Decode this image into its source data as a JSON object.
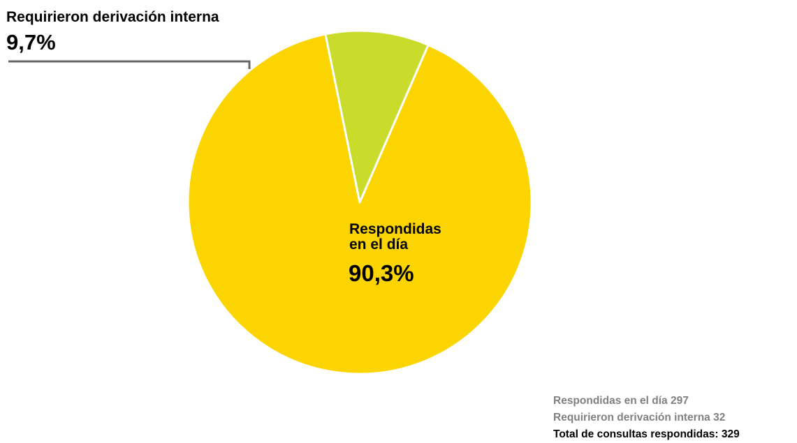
{
  "colors": {
    "primary_slice": "#FCD400",
    "secondary_slice": "#C9DC2B",
    "leader_line": "#666666",
    "separator": "#ffffff"
  },
  "chart_data": {
    "type": "pie",
    "title": "",
    "slices": [
      {
        "label": "Respondidas en el día",
        "value": 297,
        "percent_text": "90,3%"
      },
      {
        "label": "Requirieron derivación interna",
        "value": 32,
        "percent_text": "9,7%"
      }
    ]
  },
  "labels": {
    "primary_title": "Respondidas\nen el día",
    "primary_percent": "90,3%",
    "secondary_title": "Requirieron derivación interna",
    "secondary_percent": "9,7%"
  },
  "summary": {
    "line1": "Respondidas en el día 297",
    "line2": "Requirieron derivación interna 32",
    "line3": "Total de consultas respondidas: 329"
  }
}
